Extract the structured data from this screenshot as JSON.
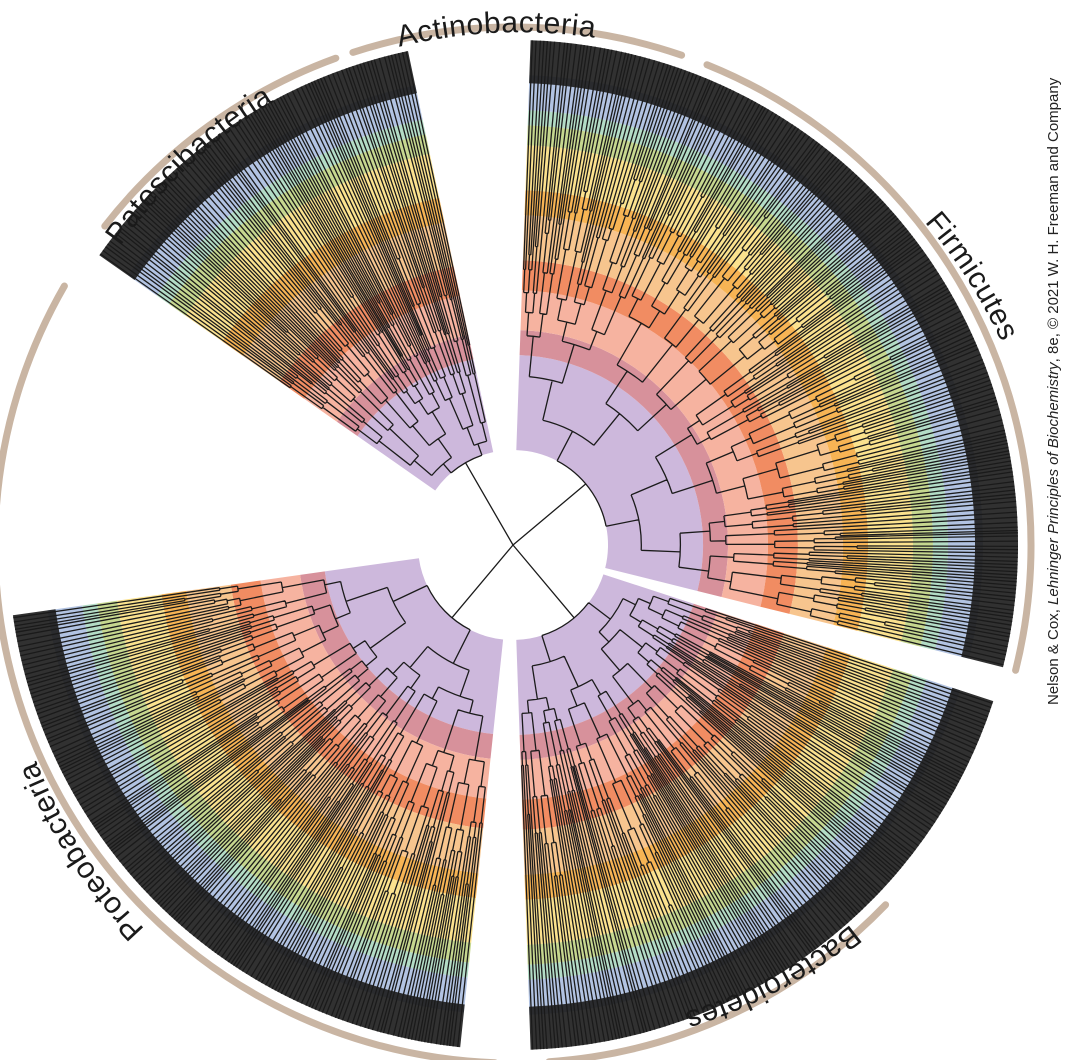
{
  "credit": {
    "pre": "Nelson & Cox, ",
    "book": "Lehninger Principles of Biochemistry",
    "post": ", 8e, © 2021 W. H. Freeman and Company"
  },
  "colors": {
    "arc": "#c9b5a3",
    "tree": "#1b1b1b",
    "bands": [
      "#cdb8dc",
      "#d7919b",
      "#f6b3a0",
      "#f18c62",
      "#f7c58e",
      "#f7b454",
      "#fbe28e",
      "#c6d78f",
      "#b3dcc6",
      "#b2c3e2"
    ]
  },
  "phyla": [
    {
      "name": "Patescibacteria"
    },
    {
      "name": "Actinobacteria"
    },
    {
      "name": "Firmicutes"
    },
    {
      "name": "Bacteroidetes"
    },
    {
      "name": "Proteobacteria"
    }
  ]
}
